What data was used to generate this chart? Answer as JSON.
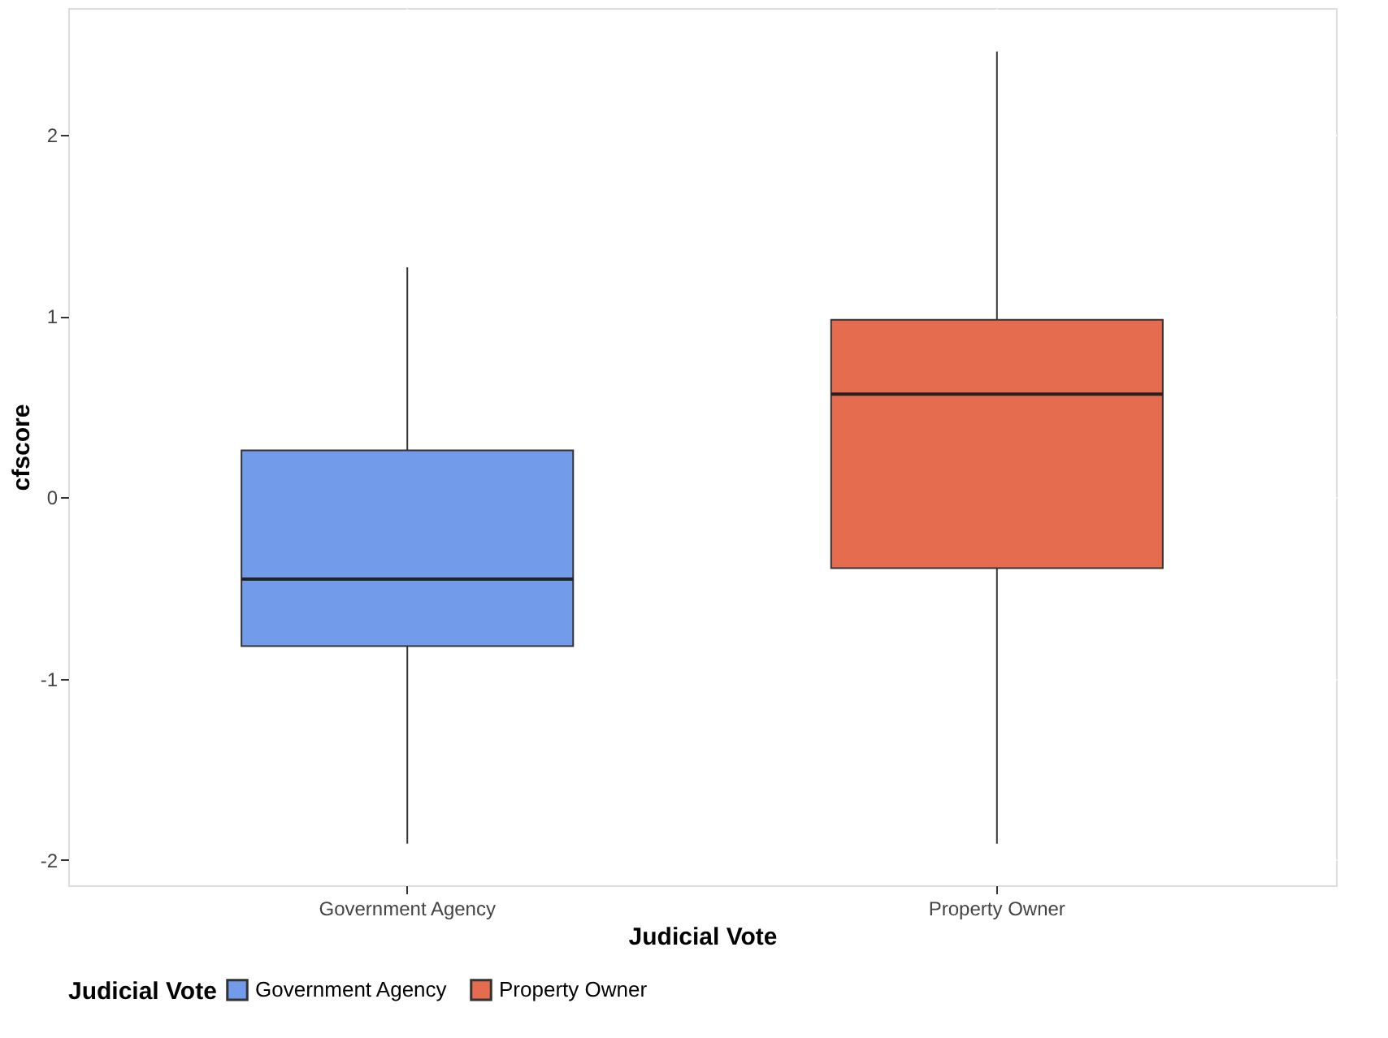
{
  "chart_data": {
    "type": "box",
    "xlabel": "Judicial Vote",
    "ylabel": "cfscore",
    "legend_title": "Judicial Vote",
    "categories": [
      "Government Agency",
      "Property Owner"
    ],
    "series": [
      {
        "name": "Government Agency",
        "color": "#729bea",
        "boxes": [
          {
            "low": -1.91,
            "q1": -0.82,
            "median": -0.45,
            "q3": 0.26,
            "high": 1.27
          },
          null
        ]
      },
      {
        "name": "Property Owner",
        "color": "#e66c4f",
        "boxes": [
          null,
          {
            "low": -1.91,
            "q1": -0.39,
            "median": 0.57,
            "q3": 0.98,
            "high": 2.46
          }
        ]
      }
    ],
    "ylim": [
      -2.14,
      2.7
    ],
    "yticks": [
      -2,
      -1,
      0,
      1,
      2
    ],
    "grid": true,
    "legend": "bottom"
  }
}
